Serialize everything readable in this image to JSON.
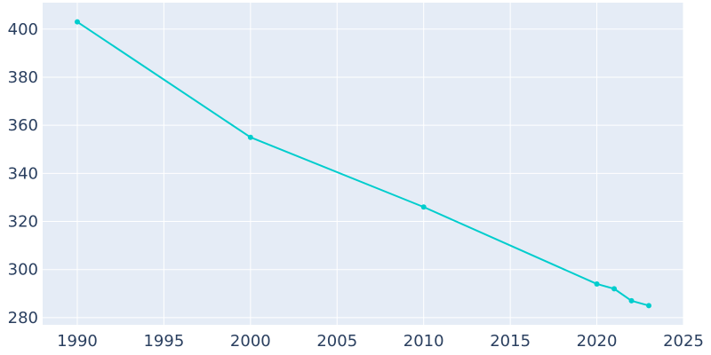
{
  "chart_data": {
    "type": "line",
    "title": "",
    "xlabel": "",
    "ylabel": "",
    "xlim": [
      1988,
      2025
    ],
    "ylim": [
      277,
      411
    ],
    "x_ticks": [
      1990,
      1995,
      2000,
      2005,
      2010,
      2015,
      2020,
      2025
    ],
    "y_ticks": [
      280,
      300,
      320,
      340,
      360,
      380,
      400
    ],
    "x_tick_labels": [
      "1990",
      "1995",
      "2000",
      "2005",
      "2010",
      "2015",
      "2020",
      "2025"
    ],
    "y_tick_labels": [
      "280",
      "300",
      "320",
      "340",
      "360",
      "380",
      "400"
    ],
    "grid": true,
    "legend": "none",
    "series": [
      {
        "x": [
          1990,
          2000,
          2010,
          2020,
          2021,
          2022,
          2023
        ],
        "values": [
          403,
          355,
          326,
          294,
          292,
          287,
          285
        ]
      }
    ],
    "colors": {
      "line": "#00cdcd",
      "plot_background": "#e5ecf6",
      "gridline": "#ffffff",
      "tick_text": "#2a3f5f"
    }
  }
}
